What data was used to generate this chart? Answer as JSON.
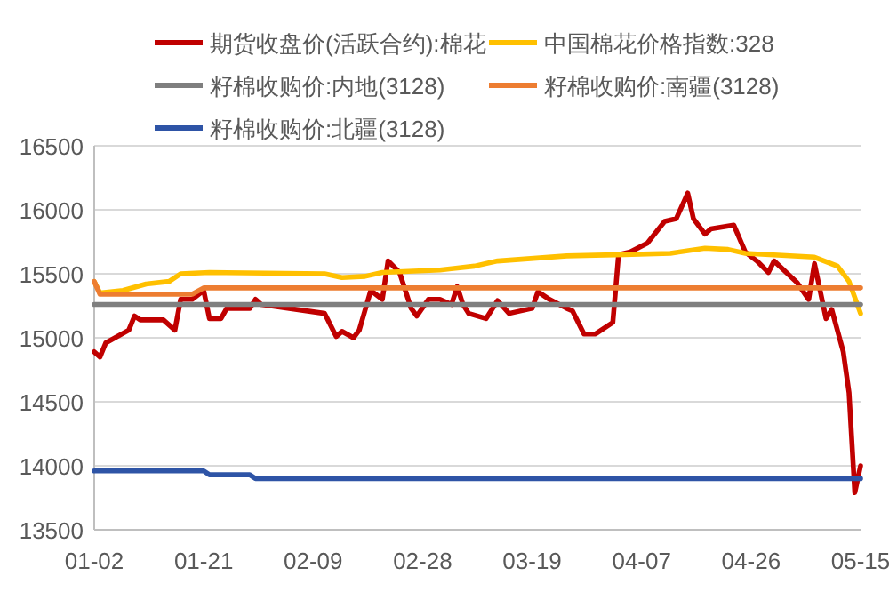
{
  "chart_data": {
    "type": "line",
    "legend": "top",
    "grid": "y",
    "marker": "none",
    "line_style": "solid",
    "xlim": [
      "--01-02",
      "--05-15"
    ],
    "xticks": [
      {
        "value": "--01-02",
        "label": "01-02"
      },
      {
        "value": "--01-21",
        "label": "01-21"
      },
      {
        "value": "--02-09",
        "label": "02-09"
      },
      {
        "value": "--02-28",
        "label": "02-28"
      },
      {
        "value": "--03-19",
        "label": "03-19"
      },
      {
        "value": "--04-07",
        "label": "04-07"
      },
      {
        "value": "--04-26",
        "label": "04-26"
      },
      {
        "value": "--05-15",
        "label": "05-15"
      }
    ],
    "ylim": [
      13500,
      16500
    ],
    "yticks": [
      13500,
      14000,
      14500,
      15000,
      15500,
      16000,
      16500
    ],
    "series": [
      {
        "name": "期货收盘价(活跃合约):棉花",
        "color": "#c00000",
        "x": [
          "--01-02",
          "--01-03",
          "--01-04",
          "--01-08",
          "--01-09",
          "--01-10",
          "--01-14",
          "--01-16",
          "--01-17",
          "--01-19",
          "--01-21",
          "--01-22",
          "--01-24",
          "--01-25",
          "--01-29",
          "--01-30",
          "--01-31",
          "--02-11",
          "--02-13",
          "--02-14",
          "--02-16",
          "--02-17",
          "--02-19",
          "--02-21",
          "--02-22",
          "--02-24",
          "--02-26",
          "--02-27",
          "--03-01",
          "--03-03",
          "--03-05",
          "--03-06",
          "--03-07",
          "--03-08",
          "--03-11",
          "--03-13",
          "--03-15",
          "--03-19",
          "--03-20",
          "--03-22",
          "--03-25",
          "--03-26",
          "--03-28",
          "--03-30",
          "--04-02",
          "--04-03",
          "--04-05",
          "--04-08",
          "--04-11",
          "--04-13",
          "--04-15",
          "--04-16",
          "--04-18",
          "--04-19",
          "--04-23",
          "--04-25",
          "--04-27",
          "--04-29",
          "--04-30",
          "--05-04",
          "--05-06",
          "--05-07",
          "--05-09",
          "--05-10",
          "--05-12",
          "--05-13",
          "--05-14",
          "--05-15"
        ],
        "values": [
          14890,
          14850,
          14960,
          15060,
          15170,
          15140,
          15140,
          15060,
          15300,
          15300,
          15370,
          15150,
          15150,
          15230,
          15230,
          15300,
          15260,
          15190,
          15010,
          15050,
          15000,
          15060,
          15370,
          15300,
          15600,
          15510,
          15230,
          15170,
          15300,
          15300,
          15260,
          15400,
          15260,
          15190,
          15150,
          15290,
          15190,
          15230,
          15360,
          15300,
          15230,
          15210,
          15030,
          15030,
          15120,
          15650,
          15670,
          15740,
          15910,
          15930,
          16130,
          15930,
          15810,
          15850,
          15880,
          15670,
          15600,
          15510,
          15600,
          15430,
          15300,
          15580,
          15150,
          15220,
          14890,
          14570,
          13790,
          14000
        ]
      },
      {
        "name": "中国棉花价格指数:328",
        "color": "#ffc000",
        "x": [
          "--01-02",
          "--01-03",
          "--01-07",
          "--01-11",
          "--01-15",
          "--01-17",
          "--01-22",
          "--02-11",
          "--02-14",
          "--02-18",
          "--02-21",
          "--03-03",
          "--03-09",
          "--03-13",
          "--03-25",
          "--04-04",
          "--04-12",
          "--04-18",
          "--04-22",
          "--04-25",
          "--05-07",
          "--05-11",
          "--05-13",
          "--05-15"
        ],
        "values": [
          15440,
          15350,
          15370,
          15420,
          15440,
          15500,
          15510,
          15500,
          15470,
          15480,
          15510,
          15530,
          15560,
          15600,
          15640,
          15650,
          15660,
          15700,
          15690,
          15660,
          15630,
          15560,
          15440,
          15190
        ]
      },
      {
        "name": "籽棉收购价:内地(3128)",
        "color": "#7f7f7f",
        "x": [
          "--01-02",
          "--05-15"
        ],
        "values": [
          15260,
          15260
        ]
      },
      {
        "name": "籽棉收购价:南疆(3128)",
        "color": "#ed7d31",
        "x": [
          "--01-02",
          "--01-03",
          "--01-19",
          "--01-21",
          "--05-15"
        ],
        "values": [
          15440,
          15340,
          15340,
          15390,
          15390
        ]
      },
      {
        "name": "籽棉收购价:北疆(3128)",
        "color": "#2e54a6",
        "x": [
          "--01-02",
          "--01-21",
          "--01-22",
          "--01-29",
          "--01-30",
          "--05-15"
        ],
        "values": [
          13960,
          13960,
          13930,
          13930,
          13900,
          13900
        ]
      }
    ]
  }
}
